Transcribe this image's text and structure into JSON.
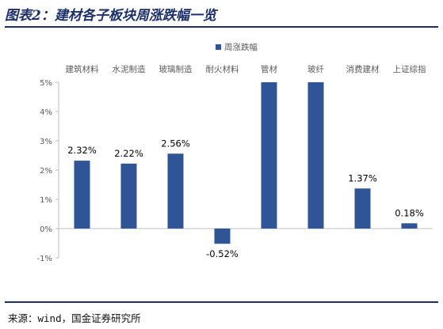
{
  "header": {
    "title": "图表2：建材各子板块周涨跌幅一览"
  },
  "footer": {
    "source": "来源：wind，国金证券研究所"
  },
  "colors": {
    "bar": "#2f5597",
    "title": "#1b2f6b",
    "axis": "#bfbfbf",
    "text": "#595959",
    "label": "#000000"
  },
  "chart_data": {
    "type": "bar",
    "title": "",
    "xlabel": "",
    "ylabel": "",
    "categories": [
      "建筑材料",
      "水泥制造",
      "玻璃制造",
      "耐火材料",
      "管材",
      "玻纤",
      "消费建材",
      "上证综指"
    ],
    "series": [
      {
        "name": "周涨跌幅",
        "values": [
          2.32,
          2.22,
          2.56,
          -0.52,
          5.0,
          5.0,
          1.37,
          0.18
        ],
        "labels": [
          "2.32%",
          "2.22%",
          "2.56%",
          "-0.52%",
          "",
          "",
          "1.37%",
          "0.18%"
        ]
      }
    ],
    "ylim": [
      -1,
      5
    ],
    "yticks": [
      -1,
      0,
      1,
      2,
      3,
      4,
      5
    ],
    "ytick_labels": [
      "-1%",
      "0%",
      "1%",
      "2%",
      "3%",
      "4%",
      "5%"
    ],
    "category_axis_position": "top",
    "legend_position": "top-center",
    "grid": false
  }
}
